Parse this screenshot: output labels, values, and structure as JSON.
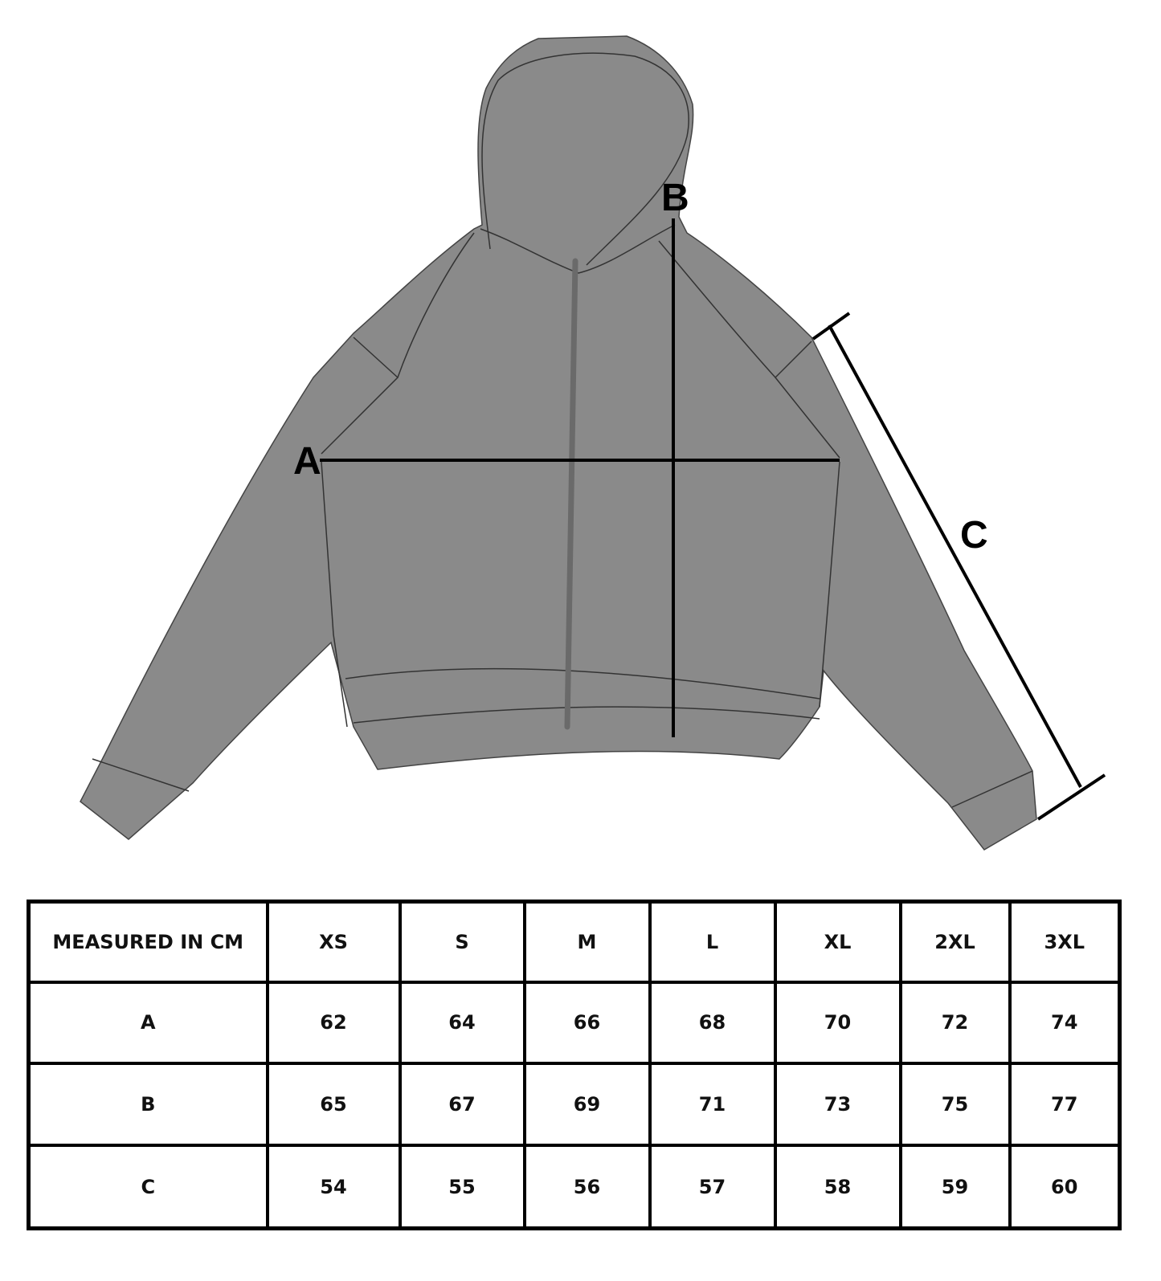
{
  "diagram": {
    "garment": "zip hoodie",
    "fill_color": "#8a8a8a",
    "labels": {
      "a": "A",
      "b": "B",
      "c": "C"
    }
  },
  "table": {
    "header": [
      "MEASURED IN CM",
      "XS",
      "S",
      "M",
      "L",
      "XL",
      "2XL",
      "3XL"
    ],
    "rows": [
      [
        "A",
        "62",
        "64",
        "66",
        "68",
        "70",
        "72",
        "74"
      ],
      [
        "B",
        "65",
        "67",
        "69",
        "71",
        "73",
        "75",
        "77"
      ],
      [
        "C",
        "54",
        "55",
        "56",
        "57",
        "58",
        "59",
        "60"
      ]
    ]
  }
}
